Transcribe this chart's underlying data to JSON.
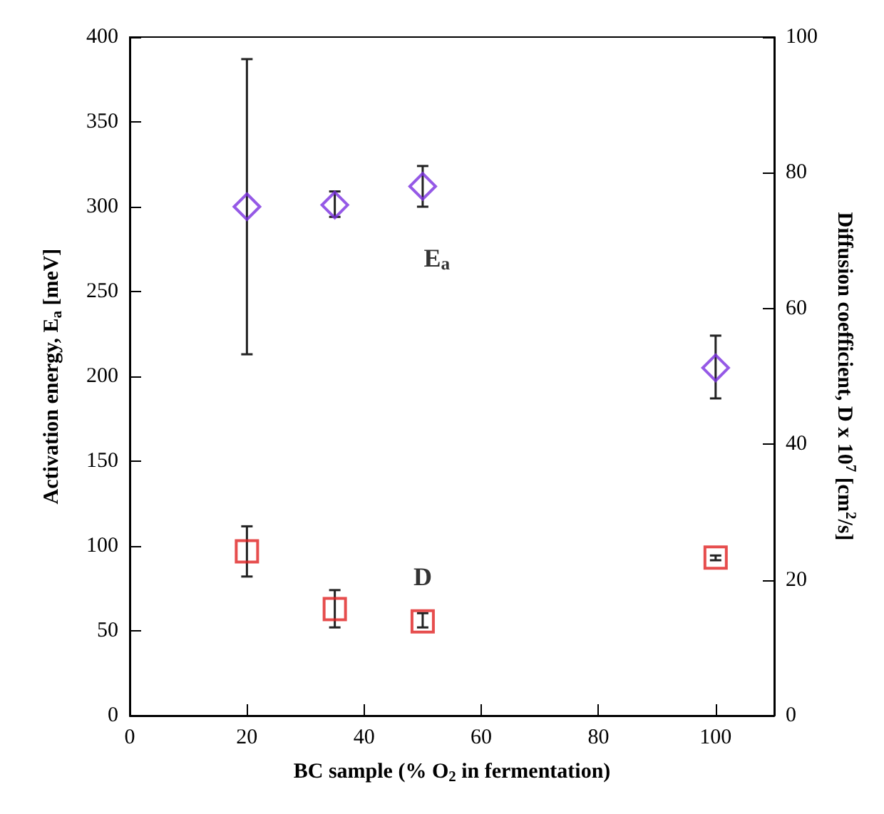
{
  "chart_data": {
    "type": "scatter",
    "xlabel": "BC sample (% O$_{2}$ in fermentation)",
    "ylabel": "Activation energy, E$_{a}$ [meV]",
    "y2label": "Diffusion coefficient, D x 10$^{7}$ [cm$^{2}$/s]",
    "x": [
      20,
      35,
      50,
      100
    ],
    "series": [
      {
        "name": "E$_{a}$",
        "color": "#7b2fe0",
        "marker": "diamond",
        "values": [
          300,
          301,
          312,
          205
        ],
        "errors": [
          [
            213,
            387
          ],
          [
            294,
            309
          ],
          [
            300,
            324
          ],
          [
            187,
            224
          ]
        ]
      },
      {
        "name": "D",
        "color": "#e02020",
        "marker": "square",
        "axis": "y2",
        "values": [
          24.2,
          15.7,
          13.9,
          23.3
        ],
        "errors": [
          [
            20.5,
            27.9
          ],
          [
            13.0,
            18.5
          ],
          [
            13.0,
            15.1
          ],
          [
            22.9,
            23.6
          ]
        ]
      }
    ],
    "xlim": [
      0,
      110
    ],
    "xticks": [
      0,
      20,
      40,
      60,
      80,
      100
    ],
    "ylim": [
      0,
      400
    ],
    "yticks": [
      0,
      50,
      100,
      150,
      200,
      250,
      300,
      350,
      400
    ],
    "y2lim": [
      0,
      100
    ],
    "y2ticks": [
      0,
      20,
      40,
      60,
      80,
      100
    ],
    "grid": false,
    "legend": false
  }
}
